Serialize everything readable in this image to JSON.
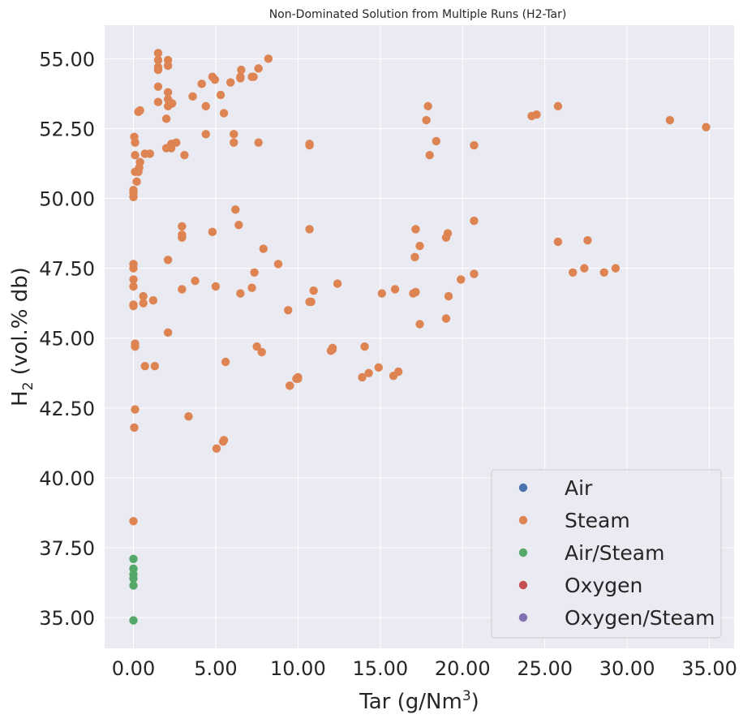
{
  "chart_data": {
    "type": "scatter",
    "title": "Non-Dominated Solution from Multiple Runs (H2-Tar)",
    "xlabel": {
      "prefix": "Tar (g/Nm",
      "sup": "3",
      "suffix": ")"
    },
    "ylabel": {
      "prefix": "H",
      "sub": "2",
      "suffix": " (vol.% db)"
    },
    "xlim": [
      -1.75,
      36.5
    ],
    "ylim": [
      33.9,
      56.2
    ],
    "xticks": [
      0,
      5,
      10,
      15,
      20,
      25,
      30,
      35
    ],
    "xtick_labels": [
      "0.00",
      "5.00",
      "10.00",
      "15.00",
      "20.00",
      "25.00",
      "30.00",
      "35.00"
    ],
    "yticks": [
      35,
      37.5,
      40,
      42.5,
      45,
      47.5,
      50,
      52.5,
      55
    ],
    "ytick_labels": [
      "35.00",
      "37.50",
      "40.00",
      "42.50",
      "45.00",
      "47.50",
      "50.00",
      "52.50",
      "55.00"
    ],
    "grid": true,
    "background": "#eaeaf2",
    "legend_position": "lower-right",
    "series": [
      {
        "name": "Air",
        "color": "#4c72b0",
        "points": []
      },
      {
        "name": "Steam",
        "color": "#dd8452",
        "points": [
          [
            0.0,
            38.45
          ],
          [
            0.05,
            41.8
          ],
          [
            0.1,
            42.45
          ],
          [
            0.1,
            44.7
          ],
          [
            0.1,
            44.8
          ],
          [
            0.0,
            46.15
          ],
          [
            0.0,
            46.2
          ],
          [
            0.0,
            46.85
          ],
          [
            0.0,
            47.1
          ],
          [
            0.0,
            47.5
          ],
          [
            0.0,
            47.65
          ],
          [
            0.0,
            50.05
          ],
          [
            0.0,
            50.2
          ],
          [
            0.0,
            50.3
          ],
          [
            0.1,
            50.95
          ],
          [
            0.2,
            50.6
          ],
          [
            0.3,
            50.95
          ],
          [
            0.35,
            51.1
          ],
          [
            0.4,
            51.3
          ],
          [
            0.1,
            51.55
          ],
          [
            0.1,
            52.0
          ],
          [
            0.05,
            52.2
          ],
          [
            0.3,
            53.1
          ],
          [
            0.4,
            53.15
          ],
          [
            0.7,
            51.6
          ],
          [
            1.0,
            51.6
          ],
          [
            0.6,
            46.5
          ],
          [
            0.6,
            46.25
          ],
          [
            1.2,
            46.35
          ],
          [
            0.7,
            44.0
          ],
          [
            1.3,
            44.0
          ],
          [
            1.5,
            53.45
          ],
          [
            1.5,
            54.0
          ],
          [
            1.5,
            54.6
          ],
          [
            1.5,
            54.7
          ],
          [
            1.5,
            54.95
          ],
          [
            1.5,
            55.2
          ],
          [
            2.1,
            54.75
          ],
          [
            2.1,
            54.95
          ],
          [
            2.0,
            52.85
          ],
          [
            2.1,
            53.3
          ],
          [
            2.1,
            53.55
          ],
          [
            2.1,
            53.8
          ],
          [
            2.35,
            53.4
          ],
          [
            2.0,
            51.8
          ],
          [
            2.3,
            51.8
          ],
          [
            2.3,
            51.95
          ],
          [
            2.6,
            52.0
          ],
          [
            3.1,
            51.55
          ],
          [
            2.1,
            47.8
          ],
          [
            2.1,
            45.2
          ],
          [
            2.95,
            46.75
          ],
          [
            2.95,
            48.6
          ],
          [
            2.95,
            48.7
          ],
          [
            2.95,
            49.0
          ],
          [
            3.35,
            42.2
          ],
          [
            3.6,
            53.65
          ],
          [
            3.75,
            47.05
          ],
          [
            4.15,
            54.1
          ],
          [
            4.4,
            52.3
          ],
          [
            4.4,
            53.3
          ],
          [
            4.8,
            54.35
          ],
          [
            4.95,
            54.25
          ],
          [
            4.8,
            48.8
          ],
          [
            5.0,
            46.85
          ],
          [
            5.05,
            41.05
          ],
          [
            5.3,
            53.7
          ],
          [
            5.5,
            53.05
          ],
          [
            5.6,
            44.15
          ],
          [
            5.45,
            41.3
          ],
          [
            5.5,
            41.35
          ],
          [
            5.9,
            54.15
          ],
          [
            6.1,
            52.3
          ],
          [
            6.1,
            52.0
          ],
          [
            6.2,
            49.6
          ],
          [
            6.4,
            49.05
          ],
          [
            6.5,
            54.3
          ],
          [
            6.5,
            54.35
          ],
          [
            6.55,
            54.6
          ],
          [
            6.5,
            46.6
          ],
          [
            7.2,
            54.35
          ],
          [
            7.3,
            54.35
          ],
          [
            7.2,
            46.8
          ],
          [
            7.35,
            47.35
          ],
          [
            7.5,
            44.7
          ],
          [
            7.6,
            54.65
          ],
          [
            7.6,
            52.0
          ],
          [
            7.8,
            44.5
          ],
          [
            7.9,
            48.2
          ],
          [
            8.2,
            55.0
          ],
          [
            8.8,
            47.65
          ],
          [
            9.4,
            46.0
          ],
          [
            9.5,
            43.3
          ],
          [
            9.5,
            43.3
          ],
          [
            9.9,
            43.55
          ],
          [
            10.0,
            43.55
          ],
          [
            10.0,
            43.6
          ],
          [
            10.7,
            51.9
          ],
          [
            10.7,
            51.95
          ],
          [
            10.7,
            48.9
          ],
          [
            10.7,
            46.3
          ],
          [
            10.8,
            46.3
          ],
          [
            10.95,
            46.7
          ],
          [
            12.0,
            44.55
          ],
          [
            12.1,
            44.6
          ],
          [
            12.1,
            44.65
          ],
          [
            12.4,
            46.95
          ],
          [
            13.9,
            43.6
          ],
          [
            14.05,
            44.7
          ],
          [
            14.3,
            43.75
          ],
          [
            14.9,
            43.95
          ],
          [
            15.1,
            46.6
          ],
          [
            15.8,
            43.65
          ],
          [
            15.9,
            46.75
          ],
          [
            16.1,
            43.8
          ],
          [
            17.0,
            46.6
          ],
          [
            17.15,
            46.65
          ],
          [
            17.1,
            47.9
          ],
          [
            17.15,
            48.9
          ],
          [
            17.4,
            48.3
          ],
          [
            17.4,
            45.5
          ],
          [
            17.8,
            52.8
          ],
          [
            17.9,
            53.3
          ],
          [
            18.0,
            51.55
          ],
          [
            18.4,
            52.05
          ],
          [
            19.0,
            45.7
          ],
          [
            19.0,
            48.6
          ],
          [
            19.1,
            48.75
          ],
          [
            19.15,
            46.5
          ],
          [
            19.9,
            47.1
          ],
          [
            20.7,
            47.3
          ],
          [
            20.7,
            49.2
          ],
          [
            20.7,
            51.9
          ],
          [
            24.2,
            52.95
          ],
          [
            24.5,
            53.0
          ],
          [
            25.8,
            53.3
          ],
          [
            25.8,
            48.45
          ],
          [
            26.7,
            47.35
          ],
          [
            27.4,
            47.5
          ],
          [
            27.6,
            48.5
          ],
          [
            28.6,
            47.35
          ],
          [
            29.3,
            47.5
          ],
          [
            32.6,
            52.8
          ],
          [
            34.8,
            52.55
          ]
        ]
      },
      {
        "name": "Air/Steam",
        "color": "#55a868",
        "points": [
          [
            0.0,
            37.1
          ],
          [
            0.0,
            36.75
          ],
          [
            0.0,
            36.55
          ],
          [
            0.0,
            36.4
          ],
          [
            0.0,
            36.15
          ],
          [
            0.0,
            34.9
          ]
        ]
      },
      {
        "name": "Oxygen",
        "color": "#c44e52",
        "points": []
      },
      {
        "name": "Oxygen/Steam",
        "color": "#8172b3",
        "points": []
      }
    ]
  }
}
